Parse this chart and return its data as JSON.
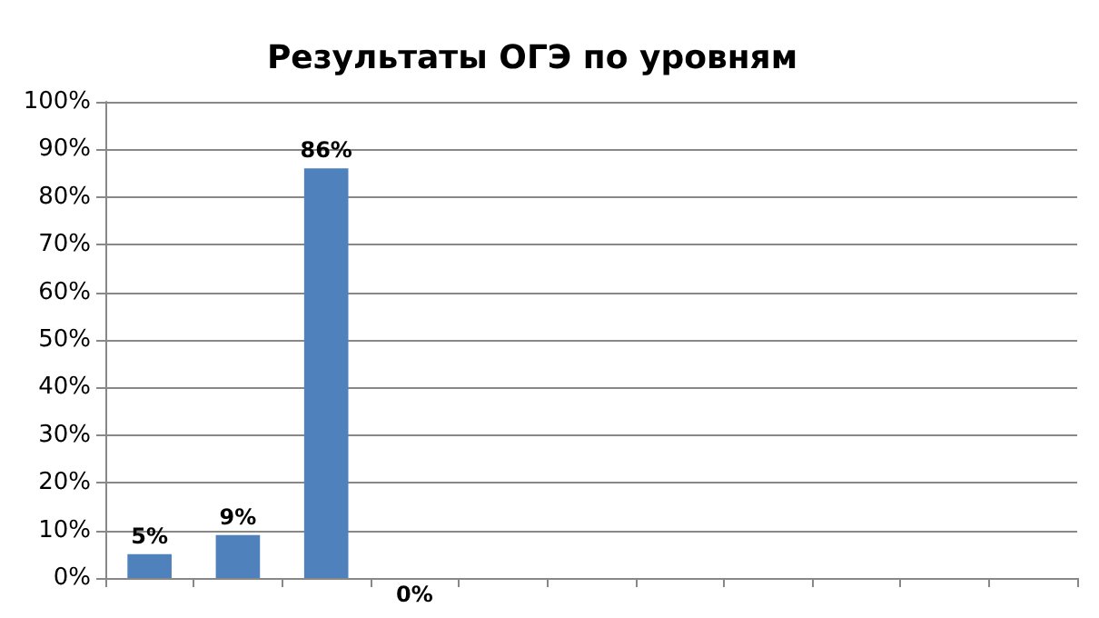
{
  "chart_data": {
    "type": "bar",
    "title": "Результаты ОГЭ по уровням",
    "categories": [
      null,
      null,
      null,
      null,
      null,
      null,
      null,
      null,
      null,
      null,
      null
    ],
    "values": [
      5,
      9,
      86,
      0,
      null,
      null,
      null,
      null,
      null,
      null,
      null
    ],
    "value_labels": [
      "5%",
      "9%",
      "86%",
      "0%",
      null,
      null,
      null,
      null,
      null,
      null,
      null
    ],
    "color": "#4f81bd",
    "ylim": [
      0,
      100
    ],
    "yticks": [
      {
        "value": 0,
        "label": "0%"
      },
      {
        "value": 10,
        "label": "10%"
      },
      {
        "value": 20,
        "label": "20%"
      },
      {
        "value": 30,
        "label": "30%"
      },
      {
        "value": 40,
        "label": "40%"
      },
      {
        "value": 50,
        "label": "50%"
      },
      {
        "value": 60,
        "label": "60%"
      },
      {
        "value": 70,
        "label": "70%"
      },
      {
        "value": 80,
        "label": "80%"
      },
      {
        "value": 90,
        "label": "90%"
      },
      {
        "value": 100,
        "label": "100%"
      }
    ],
    "grid": "y"
  }
}
